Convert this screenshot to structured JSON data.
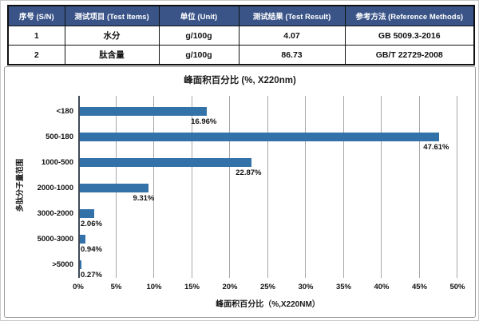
{
  "table": {
    "headers": [
      "序号 (S/N)",
      "测试项目 (Test Items)",
      "单位 (Unit)",
      "测试结果 (Test Result)",
      "参考方法 (Reference Methods)"
    ],
    "rows": [
      [
        "1",
        "水分",
        "g/100g",
        "4.07",
        "GB 5009.3-2016"
      ],
      [
        "2",
        "肽含量",
        "g/100g",
        "86.73",
        "GB/T 22729-2008"
      ]
    ]
  },
  "chart_data": {
    "type": "bar",
    "orientation": "horizontal",
    "title": "峰面积百分比 (%, X220nm)",
    "categories": [
      "<180",
      "500-180",
      "1000-500",
      "2000-1000",
      "3000-2000",
      "5000-3000",
      ">5000"
    ],
    "values": [
      16.96,
      47.61,
      22.87,
      9.31,
      2.06,
      0.94,
      0.27
    ],
    "data_labels": [
      "16.96%",
      "47.61%",
      "22.87%",
      "9.31%",
      "2.06%",
      "0.94%",
      "0.27%"
    ],
    "xlabel": "峰面积百分比（%,X220NM）",
    "ylabel": "多肽分子量范围",
    "xlim": [
      0,
      50
    ],
    "xticks": [
      "0%",
      "5%",
      "10%",
      "15%",
      "20%",
      "25%",
      "30%",
      "35%",
      "40%",
      "45%",
      "50%"
    ],
    "grid": true,
    "legend": "none",
    "bar_color": "#3372A8",
    "grid_color": "#A8A8A8"
  },
  "colors": {
    "table_header_bg": "#3A5488",
    "table_header_text": "#FFFFFF",
    "bar": "#3372A8",
    "grid": "#A8A8A8"
  }
}
